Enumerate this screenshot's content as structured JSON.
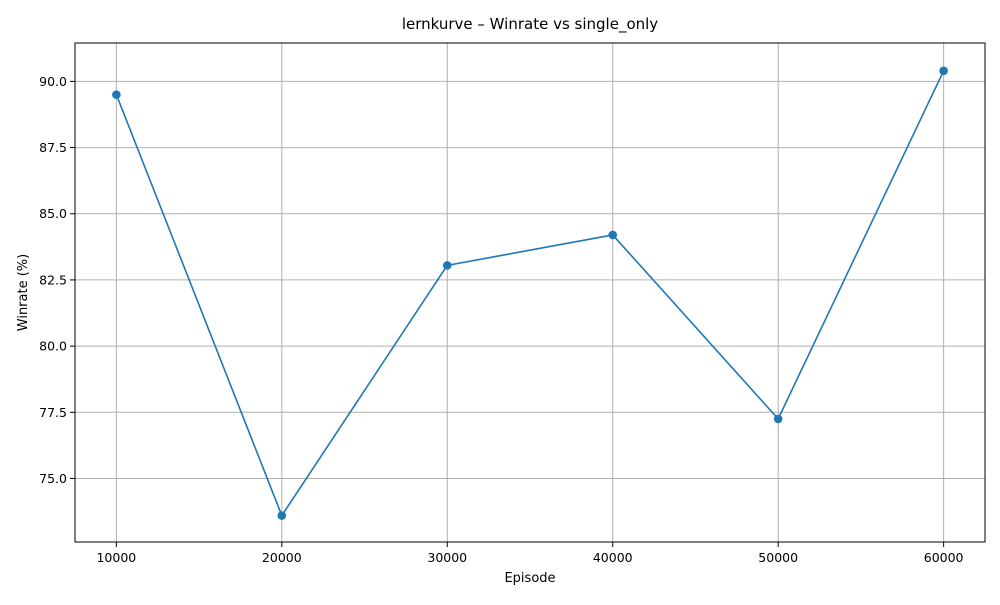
{
  "chart_data": {
    "type": "line",
    "title": "lernkurve – Winrate vs single_only",
    "xlabel": "Episode",
    "ylabel": "Winrate (%)",
    "x": [
      10000,
      20000,
      30000,
      40000,
      50000,
      60000
    ],
    "series": [
      {
        "values": [
          89.5,
          73.6,
          83.05,
          84.2,
          77.25,
          90.4
        ]
      }
    ],
    "xlim": [
      7500,
      62500
    ],
    "ylim": [
      72.6,
      91.45
    ],
    "x_ticks": [
      10000,
      20000,
      30000,
      40000,
      50000,
      60000
    ],
    "x_tick_labels": [
      "10000",
      "20000",
      "30000",
      "40000",
      "50000",
      "60000"
    ],
    "y_ticks": [
      75.0,
      77.5,
      80.0,
      82.5,
      85.0,
      87.5,
      90.0
    ],
    "y_tick_labels": [
      "75.0",
      "77.5",
      "80.0",
      "82.5",
      "85.0",
      "87.5",
      "90.0"
    ],
    "grid": true,
    "marker": "circle",
    "colors": {
      "line": "#1f77b4",
      "grid": "#b0b0b0",
      "axes": "#000000"
    }
  }
}
